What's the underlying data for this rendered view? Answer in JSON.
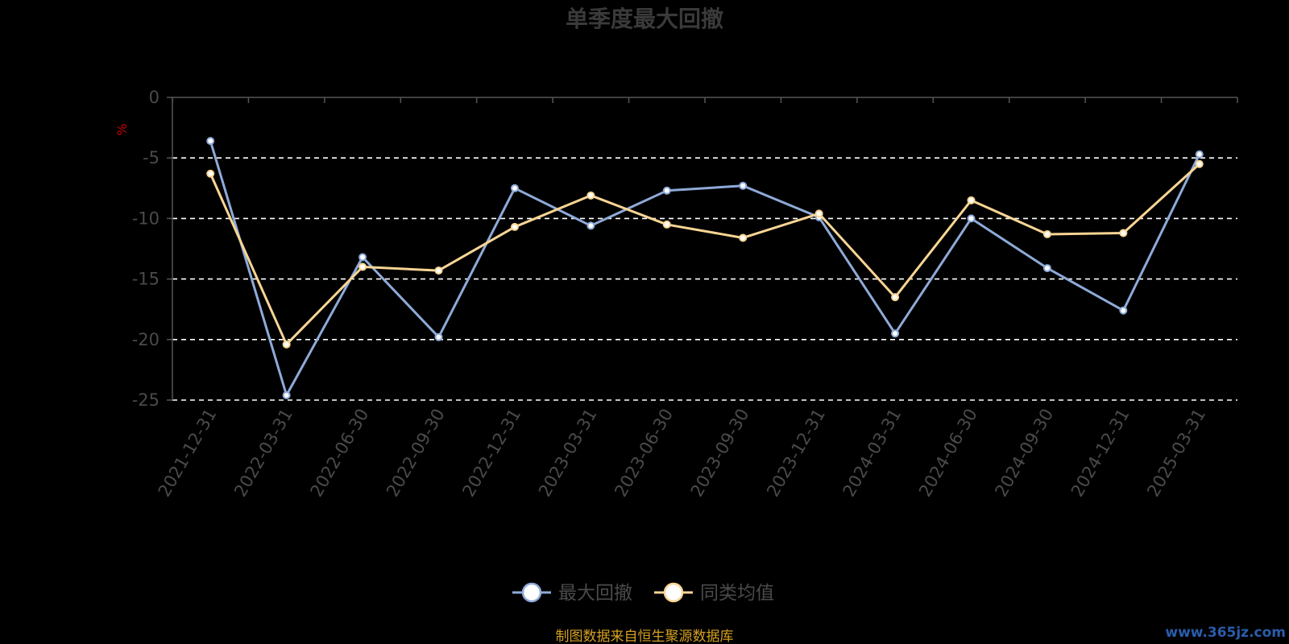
{
  "chart_data": {
    "type": "line",
    "title": "单季度最大回撤",
    "ylabel": "%",
    "ylim": [
      -25,
      0
    ],
    "yticks": [
      "0",
      "-5",
      "-10",
      "-15",
      "-20",
      "-25"
    ],
    "grid": "dashed horizontal",
    "legend_position": "bottom-center",
    "categories": [
      "2021-12-31",
      "2022-03-31",
      "2022-06-30",
      "2022-09-30",
      "2022-12-31",
      "2023-03-31",
      "2023-06-30",
      "2023-09-30",
      "2023-12-31",
      "2024-03-31",
      "2024-06-30",
      "2024-09-30",
      "2024-12-31",
      "2025-03-31"
    ],
    "series": [
      {
        "name": "最大回撤",
        "color": "#8eaad8",
        "values": [
          -3.6,
          -24.6,
          -13.2,
          -19.8,
          -7.5,
          -10.6,
          -7.7,
          -7.3,
          -9.9,
          -19.5,
          -10.0,
          -14.1,
          -17.6,
          -4.7
        ]
      },
      {
        "name": "同类均值",
        "color": "#f8d594",
        "values": [
          -6.3,
          -20.4,
          -14.0,
          -14.3,
          -10.7,
          -8.1,
          -10.5,
          -11.6,
          -9.6,
          -16.5,
          -8.5,
          -11.3,
          -11.2,
          -5.5
        ]
      }
    ]
  },
  "colors": {
    "background": "#000000",
    "axis": "#555555",
    "grid": "#ffffff",
    "unit": "#cc0000",
    "source": "#d4a020",
    "watermark": "#2a5dab"
  },
  "source_note": "制图数据来自恒生聚源数据库",
  "watermark": "www.365jz.com"
}
